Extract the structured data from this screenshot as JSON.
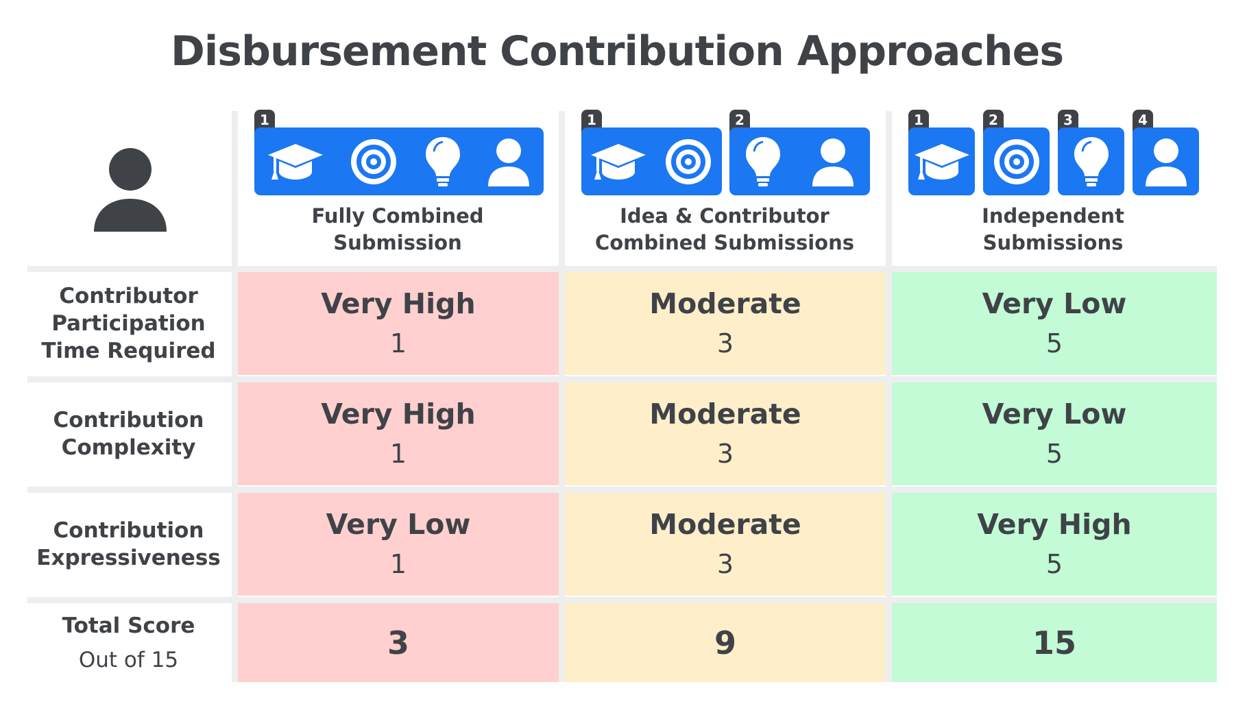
{
  "title": "Disbursement Contribution Approaches",
  "columns": [
    {
      "label_line1": "Fully Combined",
      "label_line2": "Submission",
      "group_badges": [
        "1"
      ]
    },
    {
      "label_line1": "Idea & Contributor",
      "label_line2": "Combined Submissions",
      "group_badges": [
        "1",
        "2"
      ]
    },
    {
      "label_line1": "Independent",
      "label_line2": "Submissions",
      "group_badges": [
        "1",
        "2",
        "3",
        "4"
      ]
    }
  ],
  "icons": [
    "graduation-cap-icon",
    "target-icon",
    "lightbulb-icon",
    "person-icon"
  ],
  "rows": [
    {
      "label": [
        "Contributor",
        "Participation",
        "Time Required"
      ],
      "cells": [
        {
          "rating": "Very High",
          "score": "1"
        },
        {
          "rating": "Moderate",
          "score": "3"
        },
        {
          "rating": "Very Low",
          "score": "5"
        }
      ]
    },
    {
      "label": [
        "Contribution",
        "Complexity"
      ],
      "cells": [
        {
          "rating": "Very High",
          "score": "1"
        },
        {
          "rating": "Moderate",
          "score": "3"
        },
        {
          "rating": "Very Low",
          "score": "5"
        }
      ]
    },
    {
      "label": [
        "Contribution",
        "Expressiveness"
      ],
      "cells": [
        {
          "rating": "Very Low",
          "score": "1"
        },
        {
          "rating": "Moderate",
          "score": "3"
        },
        {
          "rating": "Very High",
          "score": "5"
        }
      ]
    }
  ],
  "total": {
    "label": "Total Score",
    "sublabel": "Out of 15",
    "values": [
      "3",
      "9",
      "15"
    ]
  },
  "colors": {
    "red": "#ffd0cf",
    "yellow": "#feefca",
    "green": "#c2fbd6",
    "icon_blue": "#1b77f2",
    "text": "#3f4347"
  }
}
